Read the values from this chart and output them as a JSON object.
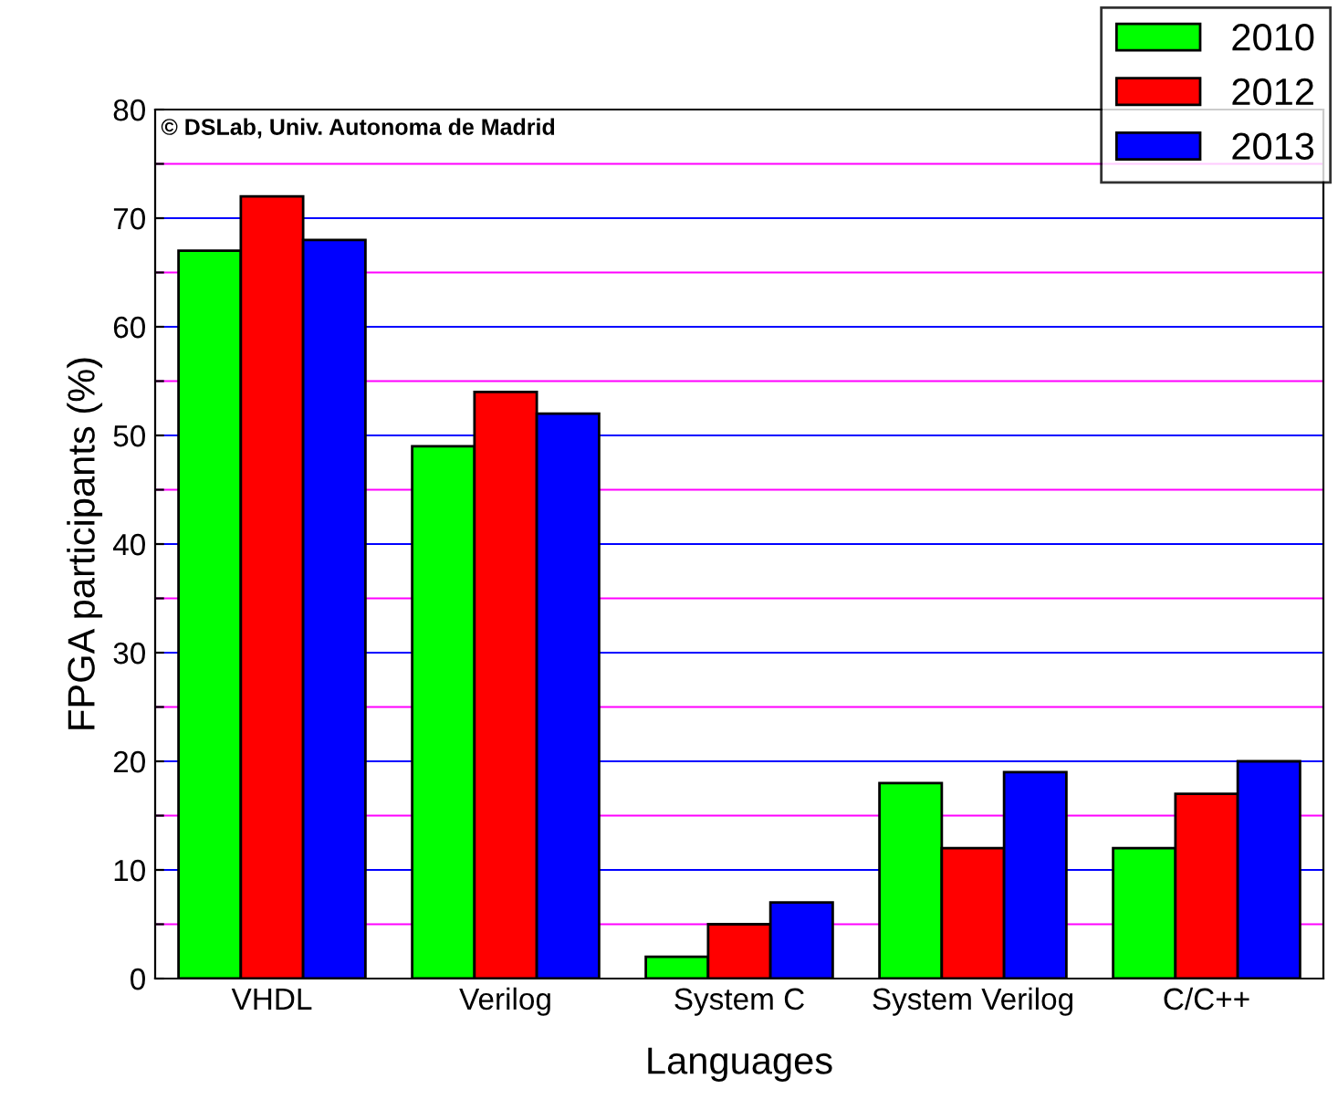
{
  "chart_data": {
    "type": "bar",
    "xlabel": "Languages",
    "ylabel": "FPGA participants (%)",
    "categories": [
      "VHDL",
      "Verilog",
      "System C",
      "System Verilog",
      "C/C++"
    ],
    "series": [
      {
        "name": "2010",
        "color": "#00ff00",
        "values": [
          67,
          49,
          2,
          18,
          12
        ]
      },
      {
        "name": "2012",
        "color": "#ff0000",
        "values": [
          72,
          54,
          5,
          12,
          17
        ]
      },
      {
        "name": "2013",
        "color": "#0000ff",
        "values": [
          68,
          52,
          7,
          19,
          20
        ]
      }
    ],
    "ylim": [
      0,
      80
    ],
    "yticks": [
      0,
      {
        "value": 5,
        "label": null
      },
      10,
      {
        "value": 15,
        "label": null
      },
      20,
      {
        "value": 25,
        "label": null
      },
      30,
      {
        "value": 35,
        "label": null
      },
      40,
      {
        "value": 45,
        "label": null
      },
      50,
      {
        "value": 55,
        "label": null
      },
      60,
      {
        "value": 65,
        "label": null
      },
      70,
      {
        "value": 75,
        "label": null
      },
      80
    ],
    "grid": "y",
    "legend": "top right",
    "annotations": [
      "© DSLab, Univ. Autonoma de Madrid"
    ]
  }
}
